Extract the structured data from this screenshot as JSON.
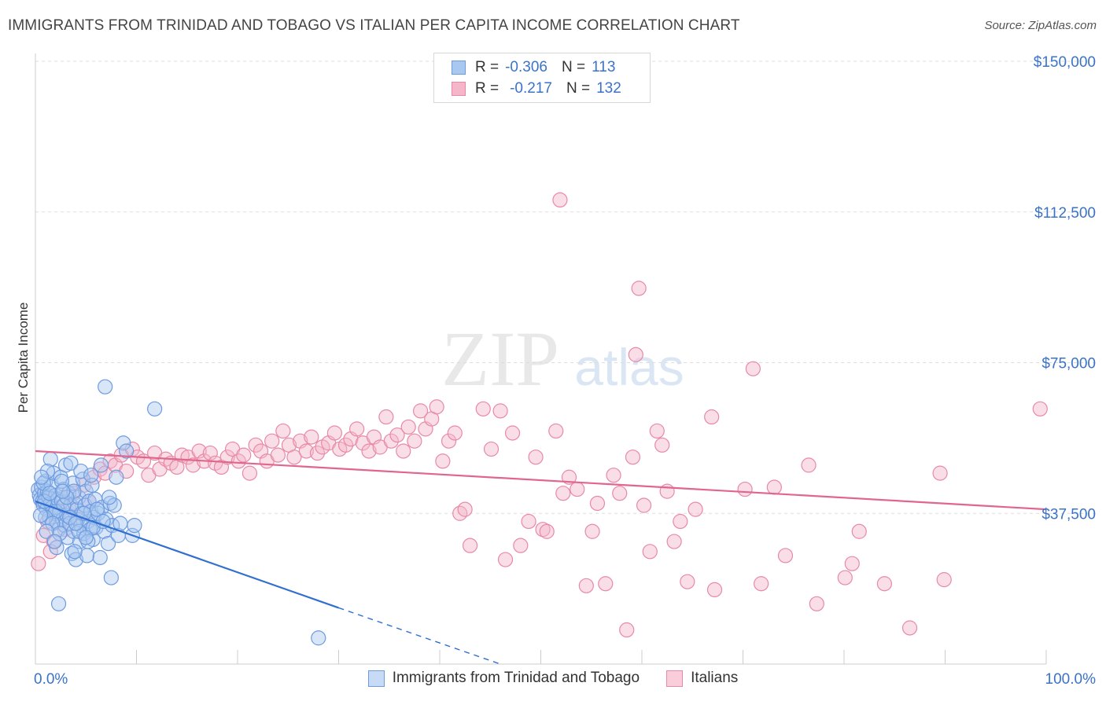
{
  "title": "IMMIGRANTS FROM TRINIDAD AND TOBAGO VS ITALIAN PER CAPITA INCOME CORRELATION CHART",
  "source": "Source: ZipAtlas.com",
  "watermark": {
    "zip": "ZIP",
    "atlas": "atlas"
  },
  "legend_top": {
    "rows": [
      {
        "r_label": "R = ",
        "r_value": "-0.306",
        "n_label": "N = ",
        "n_value": "113",
        "color": "#a9c8f0",
        "border": "#6d9be0"
      },
      {
        "r_label": "R = ",
        "r_value": "-0.217",
        "n_label": "N = ",
        "n_value": "132",
        "color": "#f5b6c9",
        "border": "#e889a6"
      }
    ]
  },
  "chart_data": {
    "type": "scatter",
    "xlabel": "",
    "ylabel": "Per Capita Income",
    "xlim": [
      0,
      100
    ],
    "ylim": [
      0,
      150000
    ],
    "x_tick_labels": [
      "0.0%",
      "100.0%"
    ],
    "y_ticks": [
      37500,
      75000,
      112500,
      150000
    ],
    "y_tick_labels": [
      "$37,500",
      "$75,000",
      "$112,500",
      "$150,000"
    ],
    "grid": "horizontal dashed",
    "legend_position": "top-center",
    "series": [
      {
        "name": "Immigrants from Trinidad and Tobago",
        "color": "#6d9be0",
        "fill": "#a9c8f0",
        "trend": {
          "x0": 0,
          "y0": 40500,
          "x1": 30,
          "y1": 14000,
          "dash_to_x": 46,
          "dash_to_y": 0,
          "color": "#2f6fd0"
        },
        "points": [
          [
            0.3,
            43500
          ],
          [
            0.4,
            42000
          ],
          [
            0.5,
            41000
          ],
          [
            0.6,
            44000
          ],
          [
            0.7,
            40500
          ],
          [
            0.8,
            39500
          ],
          [
            0.9,
            42500
          ],
          [
            1.0,
            45500
          ],
          [
            1.1,
            38500
          ],
          [
            1.2,
            43000
          ],
          [
            1.3,
            41500
          ],
          [
            1.4,
            36500
          ],
          [
            1.5,
            40000
          ],
          [
            1.6,
            44500
          ],
          [
            1.7,
            39000
          ],
          [
            1.8,
            47500
          ],
          [
            1.9,
            37500
          ],
          [
            2.0,
            42000
          ],
          [
            2.1,
            35500
          ],
          [
            2.2,
            41000
          ],
          [
            2.3,
            33500
          ],
          [
            2.4,
            38000
          ],
          [
            2.5,
            46500
          ],
          [
            2.6,
            40500
          ],
          [
            2.7,
            36000
          ],
          [
            2.8,
            43500
          ],
          [
            2.9,
            34500
          ],
          [
            3.0,
            49500
          ],
          [
            3.1,
            37000
          ],
          [
            3.2,
            31500
          ],
          [
            3.3,
            42500
          ],
          [
            3.4,
            35000
          ],
          [
            3.5,
            39500
          ],
          [
            3.6,
            27500
          ],
          [
            3.7,
            45000
          ],
          [
            3.8,
            33000
          ],
          [
            3.9,
            40000
          ],
          [
            4.0,
            26000
          ],
          [
            4.1,
            38500
          ],
          [
            4.2,
            36000
          ],
          [
            4.3,
            41500
          ],
          [
            4.4,
            30500
          ],
          [
            4.5,
            34500
          ],
          [
            4.6,
            37500
          ],
          [
            4.7,
            46000
          ],
          [
            4.8,
            32500
          ],
          [
            4.9,
            39500
          ],
          [
            5.0,
            43000
          ],
          [
            5.1,
            27000
          ],
          [
            5.2,
            35500
          ],
          [
            5.3,
            40500
          ],
          [
            5.4,
            33500
          ],
          [
            5.5,
            38000
          ],
          [
            5.6,
            44500
          ],
          [
            5.7,
            31000
          ],
          [
            5.8,
            36500
          ],
          [
            5.9,
            41000
          ],
          [
            6.0,
            34000
          ],
          [
            6.2,
            37500
          ],
          [
            6.4,
            26500
          ],
          [
            6.6,
            39000
          ],
          [
            6.8,
            33000
          ],
          [
            7.0,
            36000
          ],
          [
            7.2,
            30000
          ],
          [
            7.4,
            40000
          ],
          [
            7.6,
            34500
          ],
          [
            7.8,
            39500
          ],
          [
            8.0,
            46500
          ],
          [
            8.2,
            32000
          ],
          [
            8.4,
            35000
          ],
          [
            8.7,
            55000
          ],
          [
            9.0,
            53000
          ],
          [
            7.5,
            21500
          ],
          [
            2.3,
            15000
          ],
          [
            1.5,
            51000
          ],
          [
            3.5,
            50000
          ],
          [
            4.5,
            48000
          ],
          [
            6.5,
            49500
          ],
          [
            2.0,
            38000
          ],
          [
            1.0,
            36500
          ],
          [
            0.8,
            45000
          ],
          [
            1.2,
            48000
          ],
          [
            2.6,
            45500
          ],
          [
            3.8,
            43000
          ],
          [
            5.5,
            47000
          ],
          [
            6.9,
            69000
          ],
          [
            9.6,
            32000
          ],
          [
            9.8,
            34500
          ],
          [
            11.8,
            63500
          ],
          [
            28.0,
            6500
          ],
          [
            0.5,
            37000
          ],
          [
            0.9,
            40500
          ],
          [
            1.4,
            42500
          ],
          [
            1.7,
            35000
          ],
          [
            2.1,
            29000
          ],
          [
            2.4,
            32500
          ],
          [
            2.8,
            39500
          ],
          [
            3.1,
            41500
          ],
          [
            3.4,
            36500
          ],
          [
            3.9,
            28000
          ],
          [
            4.3,
            33000
          ],
          [
            4.8,
            37500
          ],
          [
            5.2,
            30500
          ],
          [
            5.7,
            34000
          ],
          [
            6.1,
            38500
          ],
          [
            6.7,
            35500
          ],
          [
            7.3,
            41500
          ],
          [
            0.6,
            46500
          ],
          [
            1.1,
            33000
          ],
          [
            1.9,
            30500
          ],
          [
            2.7,
            43000
          ],
          [
            4.0,
            35000
          ],
          [
            5.0,
            31500
          ]
        ]
      },
      {
        "name": "Italians",
        "color": "#e889a6",
        "fill": "#f5b6c9",
        "trend": {
          "x0": 0,
          "y0": 53000,
          "x1": 100,
          "y1": 38500,
          "color": "#e0668f"
        },
        "points": [
          [
            0.3,
            25000
          ],
          [
            0.8,
            32000
          ],
          [
            1.2,
            35500
          ],
          [
            1.8,
            30500
          ],
          [
            2.2,
            37500
          ],
          [
            2.7,
            41500
          ],
          [
            3.3,
            39000
          ],
          [
            3.8,
            42500
          ],
          [
            4.2,
            36500
          ],
          [
            4.8,
            44500
          ],
          [
            5.3,
            40500
          ],
          [
            5.8,
            46500
          ],
          [
            6.4,
            48500
          ],
          [
            6.9,
            47500
          ],
          [
            7.4,
            50500
          ],
          [
            7.9,
            49500
          ],
          [
            8.5,
            52000
          ],
          [
            9.0,
            48000
          ],
          [
            9.6,
            53500
          ],
          [
            10.1,
            51500
          ],
          [
            10.7,
            50500
          ],
          [
            11.2,
            47000
          ],
          [
            11.8,
            52500
          ],
          [
            12.3,
            48500
          ],
          [
            12.9,
            51000
          ],
          [
            13.4,
            50000
          ],
          [
            14.0,
            49000
          ],
          [
            14.5,
            52000
          ],
          [
            15.1,
            51500
          ],
          [
            15.6,
            49500
          ],
          [
            16.2,
            53000
          ],
          [
            16.7,
            50500
          ],
          [
            17.3,
            52500
          ],
          [
            17.8,
            50000
          ],
          [
            18.4,
            49000
          ],
          [
            19.0,
            51500
          ],
          [
            19.5,
            53500
          ],
          [
            20.1,
            50500
          ],
          [
            20.6,
            52000
          ],
          [
            21.2,
            47500
          ],
          [
            21.8,
            54500
          ],
          [
            22.3,
            53000
          ],
          [
            22.9,
            50500
          ],
          [
            23.4,
            55500
          ],
          [
            24.0,
            52000
          ],
          [
            24.5,
            58000
          ],
          [
            25.1,
            54500
          ],
          [
            25.6,
            51500
          ],
          [
            26.2,
            55500
          ],
          [
            26.8,
            53000
          ],
          [
            27.3,
            56500
          ],
          [
            27.9,
            52500
          ],
          [
            28.4,
            54000
          ],
          [
            29.0,
            55000
          ],
          [
            29.6,
            57500
          ],
          [
            30.1,
            53500
          ],
          [
            30.7,
            54500
          ],
          [
            31.2,
            56000
          ],
          [
            31.8,
            58500
          ],
          [
            32.4,
            55000
          ],
          [
            33.0,
            53000
          ],
          [
            33.5,
            56500
          ],
          [
            34.1,
            54000
          ],
          [
            34.7,
            61500
          ],
          [
            35.2,
            55500
          ],
          [
            35.8,
            57000
          ],
          [
            36.4,
            53000
          ],
          [
            36.9,
            59000
          ],
          [
            37.5,
            55500
          ],
          [
            38.1,
            63000
          ],
          [
            38.6,
            58500
          ],
          [
            39.2,
            61000
          ],
          [
            39.7,
            64000
          ],
          [
            40.3,
            50500
          ],
          [
            40.9,
            55500
          ],
          [
            41.5,
            57500
          ],
          [
            42.0,
            37500
          ],
          [
            42.5,
            38500
          ],
          [
            43.0,
            29500
          ],
          [
            44.3,
            63500
          ],
          [
            45.1,
            53500
          ],
          [
            46.0,
            63000
          ],
          [
            46.5,
            26000
          ],
          [
            47.2,
            57500
          ],
          [
            48.0,
            29500
          ],
          [
            48.8,
            35500
          ],
          [
            49.5,
            51500
          ],
          [
            50.2,
            33500
          ],
          [
            50.6,
            33000
          ],
          [
            51.5,
            58000
          ],
          [
            52.2,
            42500
          ],
          [
            52.8,
            46500
          ],
          [
            53.6,
            43500
          ],
          [
            54.5,
            19500
          ],
          [
            55.1,
            33000
          ],
          [
            55.6,
            40000
          ],
          [
            56.4,
            20000
          ],
          [
            57.2,
            47000
          ],
          [
            57.8,
            42500
          ],
          [
            58.5,
            8500
          ],
          [
            59.1,
            51500
          ],
          [
            59.4,
            77000
          ],
          [
            59.7,
            93500
          ],
          [
            60.2,
            39500
          ],
          [
            60.8,
            28000
          ],
          [
            61.5,
            58000
          ],
          [
            62.0,
            54500
          ],
          [
            62.5,
            43000
          ],
          [
            63.2,
            30500
          ],
          [
            63.8,
            35500
          ],
          [
            64.5,
            20500
          ],
          [
            65.3,
            38500
          ],
          [
            66.9,
            61500
          ],
          [
            67.2,
            18500
          ],
          [
            70.2,
            43500
          ],
          [
            71.0,
            73500
          ],
          [
            71.8,
            20000
          ],
          [
            73.1,
            44000
          ],
          [
            74.2,
            27000
          ],
          [
            76.5,
            49500
          ],
          [
            77.3,
            15000
          ],
          [
            80.1,
            21500
          ],
          [
            80.8,
            25000
          ],
          [
            81.5,
            33000
          ],
          [
            84.0,
            20000
          ],
          [
            86.5,
            9000
          ],
          [
            89.9,
            21000
          ],
          [
            89.5,
            47500
          ],
          [
            99.4,
            63500
          ],
          [
            51.9,
            115500
          ],
          [
            1.5,
            28000
          ],
          [
            2.9,
            33500
          ]
        ]
      }
    ]
  }
}
